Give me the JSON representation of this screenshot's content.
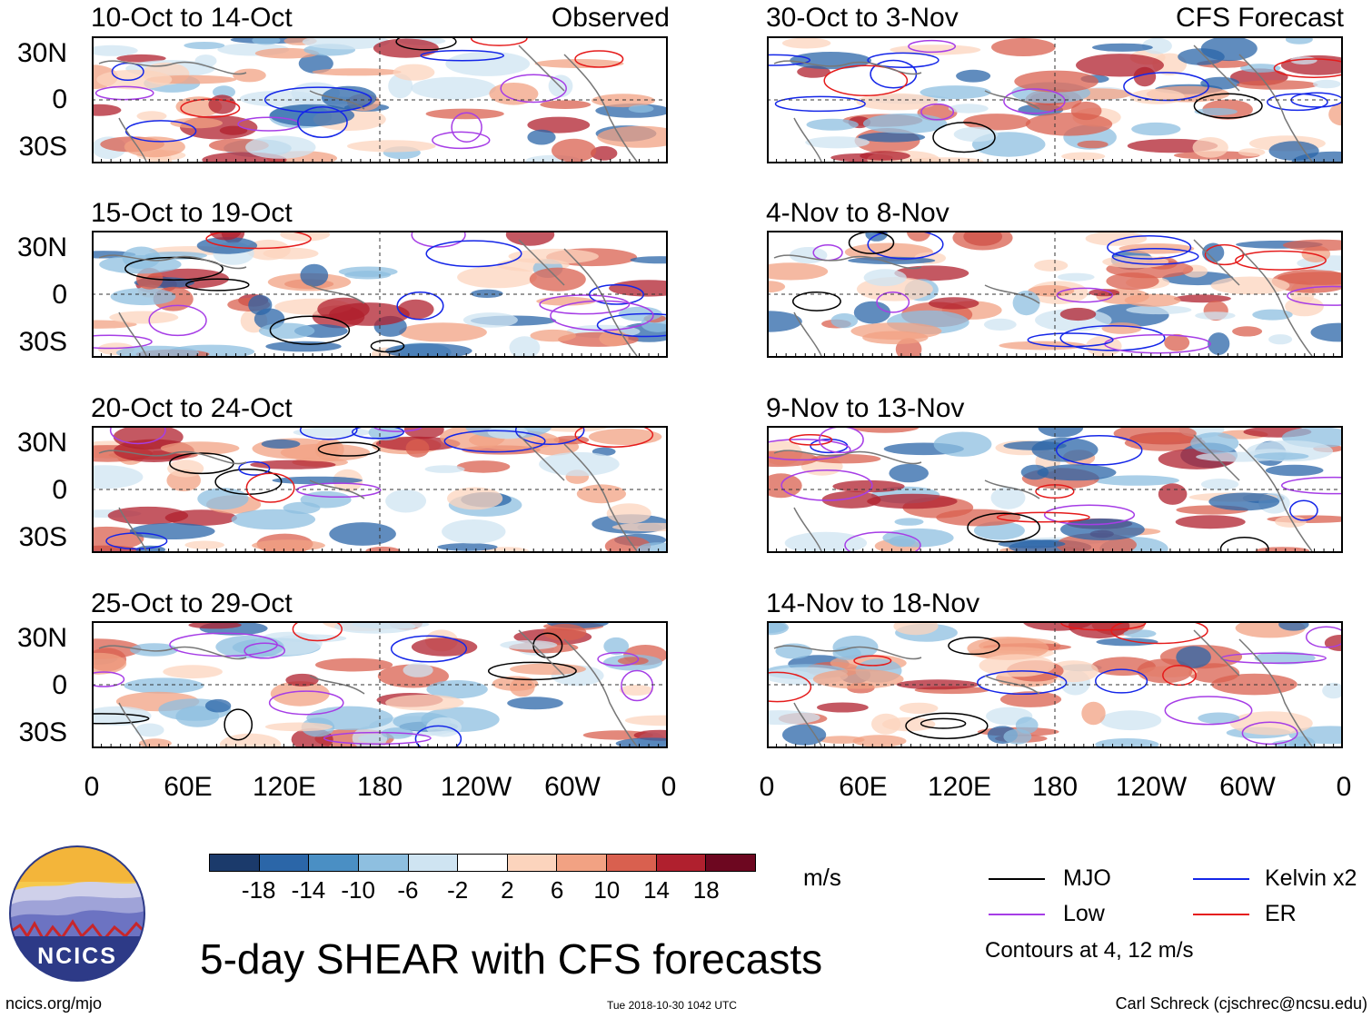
{
  "title": "5-day SHEAR with CFS forecasts",
  "observed_label": "Observed",
  "forecast_label": "CFS Forecast",
  "observed_panels": [
    {
      "title": "10-Oct to 14-Oct"
    },
    {
      "title": "15-Oct to 19-Oct"
    },
    {
      "title": "20-Oct to 24-Oct"
    },
    {
      "title": "25-Oct to 29-Oct"
    }
  ],
  "forecast_panels": [
    {
      "title": "30-Oct to 3-Nov"
    },
    {
      "title": "4-Nov to 8-Nov"
    },
    {
      "title": "9-Nov to 13-Nov"
    },
    {
      "title": "14-Nov to 18-Nov"
    }
  ],
  "lat_labels": [
    "30N",
    "0",
    "30S"
  ],
  "lon_labels": [
    "0",
    "60E",
    "120E",
    "180",
    "120W",
    "60W",
    "0"
  ],
  "colorbar": {
    "units": "m/s",
    "ticks": [
      "-18",
      "-14",
      "-10",
      "-6",
      "-2",
      "2",
      "6",
      "10",
      "14",
      "18"
    ],
    "colors": [
      "#1b3a6b",
      "#2b66a8",
      "#4a8fc4",
      "#8ebfe0",
      "#cfe4f2",
      "#ffffff",
      "#fcd4bd",
      "#f2a283",
      "#d9604f",
      "#b0202e",
      "#6d0720"
    ]
  },
  "legend": {
    "items": [
      {
        "label": "MJO",
        "color": "#000000"
      },
      {
        "label": "Kelvin x2",
        "color": "#1426e8"
      },
      {
        "label": "Low",
        "color": "#a63de6"
      },
      {
        "label": "ER",
        "color": "#e51b1b"
      }
    ],
    "note": "Contours at 4, 12 m/s"
  },
  "logo_text": "NCICS",
  "footer": {
    "url": "ncics.org/mjo",
    "timestamp": "Tue 2018-10-30 1042 UTC",
    "credit": "Carl Schreck (cjschrec@ncsu.edu)"
  }
}
